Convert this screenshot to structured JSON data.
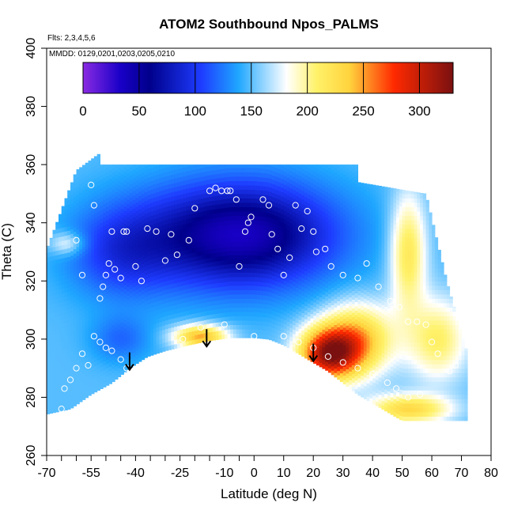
{
  "chart_data": {
    "type": "heatmap",
    "title": "ATOM2 Southbound Npos_PALMS",
    "notes": [
      "Flts: 2,3,4,5,6",
      "MMDD: 0129,0201,0203,0205,0210"
    ],
    "xlabel": "Latitude (deg N)",
    "ylabel": "Theta (C)",
    "xlim": [
      -70,
      80
    ],
    "ylim": [
      260,
      400
    ],
    "x_ticks": [
      -70,
      -55,
      -40,
      -25,
      -10,
      0,
      10,
      20,
      30,
      40,
      50,
      60,
      70,
      80
    ],
    "x_tick_labels": [
      "-70",
      "-55",
      "-40",
      "-25",
      "-10",
      "0",
      "10",
      "20",
      "30",
      "40",
      "50",
      "60",
      "70",
      "80"
    ],
    "x_minor_ticks": [
      -65,
      -60,
      -50,
      -45,
      -35,
      -30,
      -20,
      -15,
      -5
    ],
    "y_ticks": [
      260,
      280,
      300,
      320,
      340,
      360,
      380,
      400
    ],
    "colorbar": {
      "range": [
        0,
        330
      ],
      "ticks": [
        0,
        50,
        100,
        150,
        200,
        250,
        300
      ],
      "colors": [
        "#8a2be2",
        "#00008b",
        "#1e3cff",
        "#1fa7ff",
        "#ffffff",
        "#ffd33d",
        "#ff2a00",
        "#7a1010"
      ]
    },
    "surface_boundary": [
      [
        -71,
        274
      ],
      [
        -62,
        276
      ],
      [
        -55,
        281
      ],
      [
        -48,
        285
      ],
      [
        -42,
        290
      ],
      [
        -36,
        294
      ],
      [
        -30,
        296
      ],
      [
        -22,
        298
      ],
      [
        -15,
        299.5
      ],
      [
        -8,
        300.5
      ],
      [
        0,
        300.5
      ],
      [
        5,
        300
      ],
      [
        10,
        298
      ],
      [
        15,
        295
      ],
      [
        20,
        292
      ],
      [
        25,
        289
      ],
      [
        30,
        285
      ],
      [
        35,
        281
      ],
      [
        40,
        278
      ],
      [
        45,
        275
      ],
      [
        50,
        272
      ],
      [
        55,
        272
      ],
      [
        60,
        272
      ],
      [
        65,
        272
      ],
      [
        72,
        272
      ]
    ],
    "arrows": [
      {
        "lat": -42,
        "theta": 290
      },
      {
        "lat": -16,
        "theta": 298
      },
      {
        "lat": 20,
        "theta": 293
      }
    ],
    "observations": [
      [
        -60,
        334
      ],
      [
        -58,
        322
      ],
      [
        -55,
        353
      ],
      [
        -54,
        346
      ],
      [
        -52,
        314
      ],
      [
        -51,
        318
      ],
      [
        -50,
        322
      ],
      [
        -49,
        326
      ],
      [
        -48,
        337
      ],
      [
        -47,
        324
      ],
      [
        -45,
        321
      ],
      [
        -44,
        337
      ],
      [
        -43,
        337
      ],
      [
        -40,
        325
      ],
      [
        -38,
        320
      ],
      [
        -36,
        338
      ],
      [
        -33,
        337
      ],
      [
        -30,
        327
      ],
      [
        -28,
        336
      ],
      [
        -26,
        329
      ],
      [
        -22,
        334
      ],
      [
        -20,
        345
      ],
      [
        -15,
        351
      ],
      [
        -13,
        352
      ],
      [
        -11,
        351
      ],
      [
        -9,
        351
      ],
      [
        -8,
        351
      ],
      [
        -6,
        348
      ],
      [
        -5,
        325
      ],
      [
        -3,
        337
      ],
      [
        -2,
        340
      ],
      [
        -1,
        342
      ],
      [
        3,
        348
      ],
      [
        5,
        346
      ],
      [
        6,
        336
      ],
      [
        8,
        331
      ],
      [
        10,
        322
      ],
      [
        12,
        328
      ],
      [
        14,
        346
      ],
      [
        16,
        338
      ],
      [
        18,
        344
      ],
      [
        20,
        337
      ],
      [
        21,
        330
      ],
      [
        24,
        331
      ],
      [
        26,
        325
      ],
      [
        30,
        322
      ],
      [
        35,
        321
      ],
      [
        38,
        326
      ],
      [
        42,
        318
      ],
      [
        46,
        313
      ],
      [
        49,
        311
      ],
      [
        52,
        306
      ],
      [
        55,
        306
      ],
      [
        58,
        305
      ],
      [
        60,
        299
      ],
      [
        62,
        295
      ],
      [
        -58,
        295
      ],
      [
        -56,
        291
      ],
      [
        -54,
        301
      ],
      [
        -52,
        299
      ],
      [
        -50,
        297
      ],
      [
        -48,
        296
      ],
      [
        -45,
        293
      ],
      [
        -43,
        290
      ],
      [
        -40,
        287
      ],
      [
        -38,
        285
      ],
      [
        -30,
        294
      ],
      [
        -24,
        300
      ],
      [
        -18,
        304
      ],
      [
        -10,
        305
      ],
      [
        0,
        301
      ],
      [
        10,
        301
      ],
      [
        15,
        299
      ],
      [
        20,
        297
      ],
      [
        25,
        294
      ],
      [
        30,
        292
      ],
      [
        35,
        290
      ],
      [
        40,
        288
      ],
      [
        45,
        285
      ],
      [
        48,
        283
      ],
      [
        52,
        280
      ],
      [
        56,
        281
      ],
      [
        -65,
        276
      ],
      [
        -64,
        283
      ],
      [
        -62,
        286
      ],
      [
        -60,
        290
      ],
      [
        66,
        289
      ],
      [
        68,
        291
      ]
    ]
  }
}
